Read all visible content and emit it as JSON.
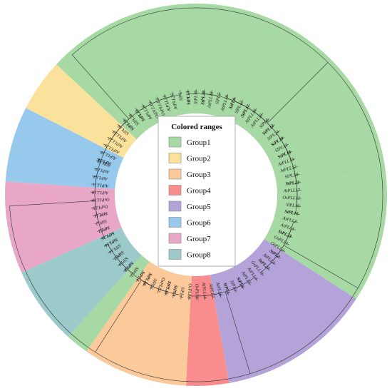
{
  "legend": {
    "title": "Colored ranges",
    "items": [
      {
        "label": "Group1",
        "color": "#A6D9A3"
      },
      {
        "label": "Group2",
        "color": "#FBE29C"
      },
      {
        "label": "Group3",
        "color": "#FBC99A"
      },
      {
        "label": "Group4",
        "color": "#F98D8D"
      },
      {
        "label": "Group5",
        "color": "#B3A3D9"
      },
      {
        "label": "Group6",
        "color": "#96C9EC"
      },
      {
        "label": "Group7",
        "color": "#E9A7C8"
      },
      {
        "label": "Group8",
        "color": "#9CCACB"
      }
    ]
  },
  "sectors": [
    {
      "group": "Group1",
      "color": "#A6D9A3",
      "start": 7,
      "end": 137
    },
    {
      "group": "Group2",
      "color": "#FBE29C",
      "start": 137,
      "end": 153
    },
    {
      "group": "Group6",
      "color": "#96C9EC",
      "start": 153,
      "end": 176
    },
    {
      "group": "Group7",
      "color": "#E9A7C8",
      "start": 176,
      "end": 204
    },
    {
      "group": "Group8",
      "color": "#9CCACB",
      "start": 204,
      "end": 228
    },
    {
      "group": "Group1",
      "color": "#A6D9A3",
      "start": 228,
      "end": 235
    },
    {
      "group": "Group3",
      "color": "#FBC99A",
      "start": 235,
      "end": 267
    },
    {
      "group": "Group4",
      "color": "#F98D8D",
      "start": 267,
      "end": 280
    },
    {
      "group": "Group5",
      "color": "#B3A3D9",
      "start": 280,
      "end": 327
    },
    {
      "group": "Group1",
      "color": "#A6D9A3",
      "start": 327,
      "end": 367
    }
  ],
  "leaves": [
    {
      "text": "StPL24",
      "bold": true
    },
    {
      "text": "AtPLL20",
      "bold": false
    },
    {
      "text": "AtPLL21",
      "bold": false
    },
    {
      "text": "AtPLL22",
      "bold": false
    },
    {
      "text": "AtPLL23",
      "bold": false
    },
    {
      "text": "SlPL16",
      "bold": false
    },
    {
      "text": "StPL21",
      "bold": true
    },
    {
      "text": "SlPL20",
      "bold": false
    },
    {
      "text": "StPL25",
      "bold": true
    },
    {
      "text": "AtPLL26",
      "bold": false
    },
    {
      "text": "OsPLL4.1",
      "bold": false
    },
    {
      "text": "OsPLL4.2",
      "bold": false
    },
    {
      "text": "AtPLL24",
      "bold": false
    },
    {
      "text": "AtPLL25",
      "bold": false
    },
    {
      "text": "SlPL",
      "bold": false
    },
    {
      "text": "StPL13",
      "bold": true
    },
    {
      "text": "SlPL15",
      "bold": false
    },
    {
      "text": "StPL20",
      "bold": true
    },
    {
      "text": "AtPLL19",
      "bold": false
    },
    {
      "text": "SlPL5",
      "bold": false
    },
    {
      "text": "AtPLL18",
      "bold": false
    },
    {
      "text": "StPL9",
      "bold": true
    },
    {
      "text": "SlPL12",
      "bold": false
    },
    {
      "text": "StPL17",
      "bold": true
    },
    {
      "text": "AtPLL16",
      "bold": false
    },
    {
      "text": "AtPLL15",
      "bold": false
    },
    {
      "text": "SlPL8",
      "bold": false
    },
    {
      "text": "StPL12",
      "bold": true
    },
    {
      "text": "SlPL24",
      "bold": false
    },
    {
      "text": "StPL19",
      "bold": true
    },
    {
      "text": "SlPL13",
      "bold": false
    },
    {
      "text": "StPL18",
      "bold": true
    },
    {
      "text": "AtPLL13",
      "bold": false
    },
    {
      "text": "AtPLL12",
      "bold": false
    },
    {
      "text": "SlPL18",
      "bold": false
    },
    {
      "text": "StPL22",
      "bold": true
    },
    {
      "text": "AtPLL17",
      "bold": false
    },
    {
      "text": "OsPLL12",
      "bold": false
    },
    {
      "text": "SlPL10",
      "bold": false
    },
    {
      "text": "StPL15",
      "bold": true
    },
    {
      "text": "AtPLL2",
      "bold": false
    },
    {
      "text": "AtPLL1",
      "bold": false
    },
    {
      "text": "StPL23",
      "bold": true
    },
    {
      "text": "OsPLL1",
      "bold": false
    },
    {
      "text": "OsPLL2",
      "bold": false
    },
    {
      "text": "StPL2",
      "bold": true
    },
    {
      "text": "AtPLL3",
      "bold": false
    },
    {
      "text": "StPL27",
      "bold": true
    },
    {
      "text": "OsPLL11",
      "bold": false
    },
    {
      "text": "AtPLL4",
      "bold": false
    },
    {
      "text": "AtPLL5",
      "bold": false
    },
    {
      "text": "StPL6",
      "bold": true
    },
    {
      "text": "SlPL3",
      "bold": false
    },
    {
      "text": "StPL5",
      "bold": true
    },
    {
      "text": "AtPLL6",
      "bold": false
    },
    {
      "text": "AtPLL7",
      "bold": false
    },
    {
      "text": "AtPLL14",
      "bold": false
    },
    {
      "text": "OsPLL6",
      "bold": false
    },
    {
      "text": "OsPLL8",
      "bold": false
    },
    {
      "text": "SlPL1",
      "bold": false
    },
    {
      "text": "StPL1",
      "bold": true
    },
    {
      "text": "StPL16",
      "bold": true
    },
    {
      "text": "OsPLL7",
      "bold": false
    },
    {
      "text": "SlPL6",
      "bold": false
    },
    {
      "text": "StPL10",
      "bold": true
    },
    {
      "text": "StPL4",
      "bold": true
    },
    {
      "text": "SlPL7",
      "bold": false
    },
    {
      "text": "StPL8",
      "bold": true
    },
    {
      "text": "SlPL9",
      "bold": false
    },
    {
      "text": "StPL7",
      "bold": true
    },
    {
      "text": "SlPL14",
      "bold": false
    },
    {
      "text": "StPL14",
      "bold": true
    },
    {
      "text": "StPL26",
      "bold": true
    },
    {
      "text": "StPL3",
      "bold": true
    },
    {
      "text": "SlPL2",
      "bold": false
    },
    {
      "text": "StPL11",
      "bold": true
    },
    {
      "text": "OsPLL9",
      "bold": false
    },
    {
      "text": "OsPLL10",
      "bold": false
    },
    {
      "text": "AtPLL10",
      "bold": false
    },
    {
      "text": "AtPLL11",
      "bold": false
    },
    {
      "text": "AtPLL8",
      "bold": false
    },
    {
      "text": "AtPLL9",
      "bold": false
    },
    {
      "text": "SlPL19",
      "bold": false
    }
  ]
}
